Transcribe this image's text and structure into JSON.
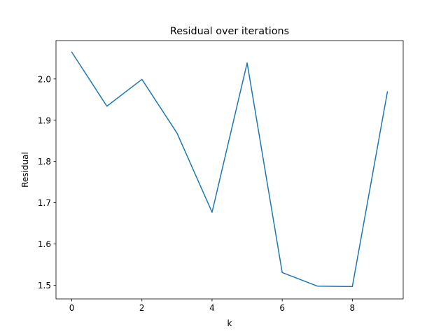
{
  "chart_data": {
    "type": "line",
    "title": "Residual over iterations",
    "xlabel": "k",
    "ylabel": "Residual",
    "xlim": [
      -0.45,
      9.45
    ],
    "ylim": [
      1.467,
      2.093
    ],
    "xticks": [
      0,
      2,
      4,
      6,
      8
    ],
    "yticks": [
      1.5,
      1.6,
      1.7,
      1.8,
      1.9,
      2.0
    ],
    "grid": false,
    "series": [
      {
        "color": "#1f77b4",
        "x": [
          0,
          1,
          2,
          3,
          4,
          5,
          6,
          7,
          8,
          9
        ],
        "y": [
          2.065,
          1.934,
          1.999,
          1.869,
          1.677,
          2.039,
          1.531,
          1.498,
          1.497,
          1.969
        ]
      }
    ]
  }
}
